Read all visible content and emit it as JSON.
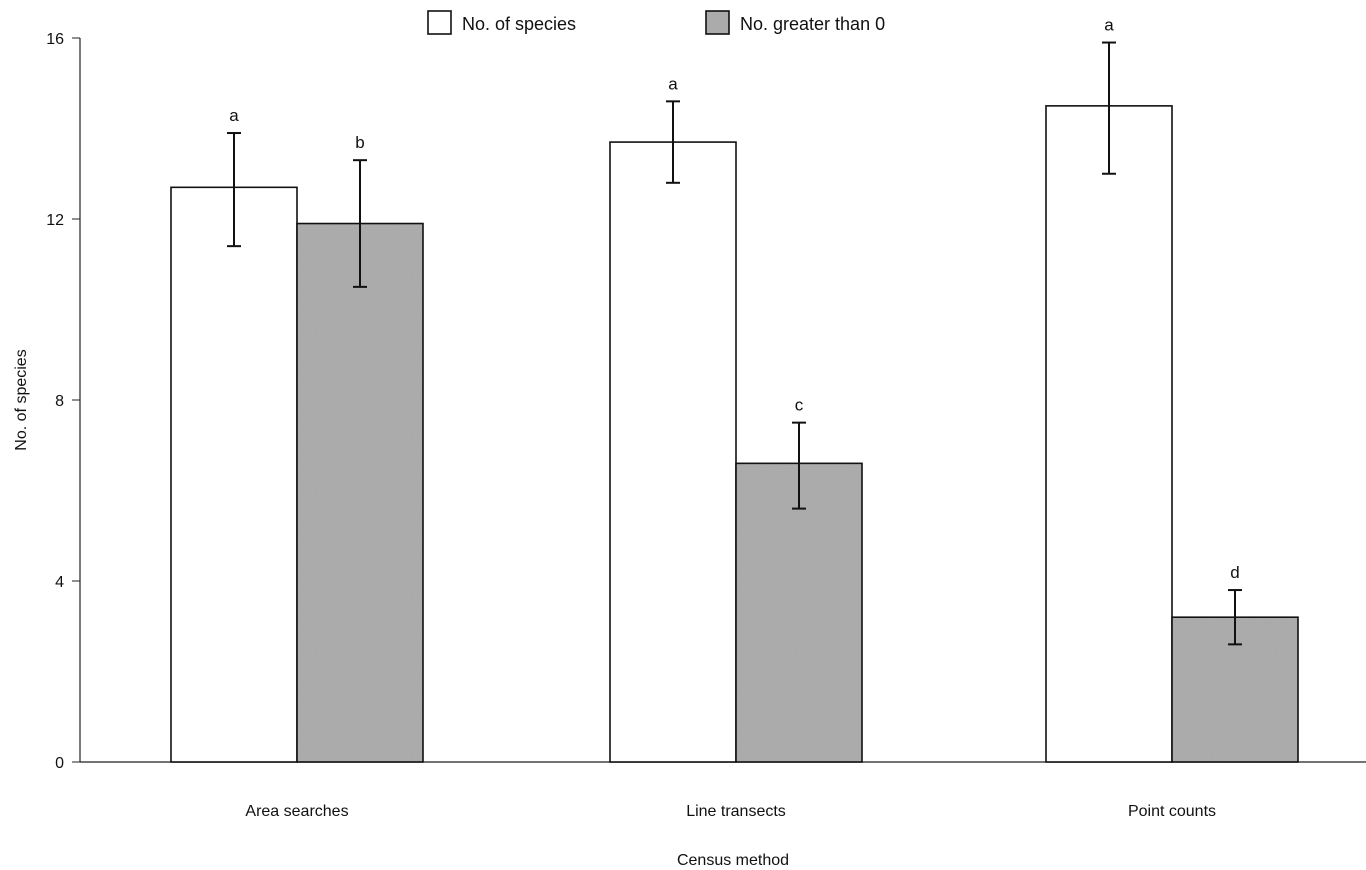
{
  "chart_data": {
    "type": "bar",
    "title": "",
    "xlabel": "Census method",
    "ylabel": "No. of species",
    "categories": [
      "Area searches",
      "Line transects",
      "Point counts"
    ],
    "ylim": [
      0,
      16
    ],
    "yticks": [
      0,
      4,
      8,
      12,
      16
    ],
    "legend_position": "top-center",
    "grid": false,
    "series": [
      {
        "name": "No. of species",
        "color": "#ffffff",
        "pattern": "none",
        "values": [
          12.7,
          13.7,
          14.5
        ],
        "error_low": [
          11.4,
          12.8,
          13.0
        ],
        "error_high": [
          13.9,
          14.6,
          15.9
        ],
        "sig_labels": [
          "a",
          "a",
          "a"
        ]
      },
      {
        "name": "No. greater than 0",
        "color": "#a8a8a8",
        "pattern": "stipple",
        "values": [
          11.9,
          6.6,
          3.2
        ],
        "error_low": [
          10.5,
          5.6,
          2.6
        ],
        "error_high": [
          13.3,
          7.5,
          3.8
        ],
        "sig_labels": [
          "b",
          "c",
          "d"
        ]
      }
    ]
  }
}
